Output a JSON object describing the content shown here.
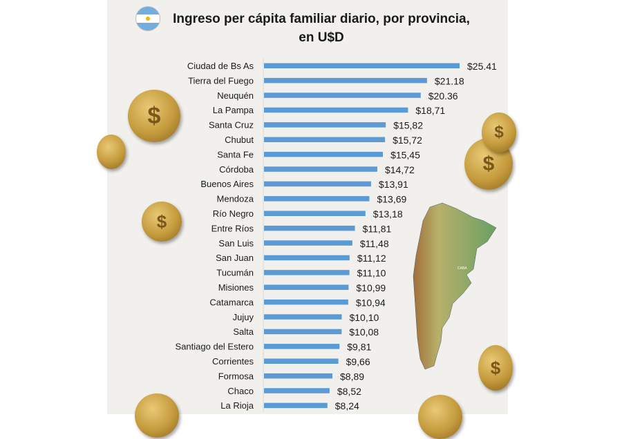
{
  "chart_data": {
    "type": "bar",
    "orientation": "horizontal",
    "title": "Ingreso per cápita familiar diario, por provincia, en U$D",
    "title_lines": [
      "Ingreso per cápita familiar diario, por provincia,",
      "en U$D"
    ],
    "categories": [
      "Ciudad de Bs As",
      "Tierra del Fuego",
      "Neuquén",
      "La Pampa",
      "Santa Cruz",
      "Chubut",
      "Santa Fe",
      "Córdoba",
      "Buenos Aires",
      "Mendoza",
      "Río Negro",
      "Entre Ríos",
      "San Luis",
      "San Juan",
      "Tucumán",
      "Misiones",
      "Catamarca",
      "Jujuy",
      "Salta",
      "Santiago del Estero",
      "Corrientes",
      "Formosa",
      "Chaco",
      "La Rioja"
    ],
    "values": [
      25.41,
      21.18,
      20.36,
      18.71,
      15.82,
      15.72,
      15.45,
      14.72,
      13.91,
      13.69,
      13.18,
      11.81,
      11.48,
      11.12,
      11.1,
      10.99,
      10.94,
      10.1,
      10.08,
      9.81,
      9.66,
      8.89,
      8.52,
      8.24
    ],
    "value_labels": [
      "$25.41",
      "$21.18",
      "$20.36",
      "$18,71",
      "$15,82",
      "$15,72",
      "$15,45",
      "$14,72",
      "$13,91",
      "$13,69",
      "$13,18",
      "$11,81",
      "$11,48",
      "$11,12",
      "$11,10",
      "$10,99",
      "$10,94",
      "$10,10",
      "$10,08",
      "$9,81",
      "$9,66",
      "$8,89",
      "$8,52",
      "$8,24"
    ],
    "xlim": [
      0,
      26
    ],
    "grid": false,
    "bar_color": "#5b9bd5"
  },
  "map_label": "CABA"
}
